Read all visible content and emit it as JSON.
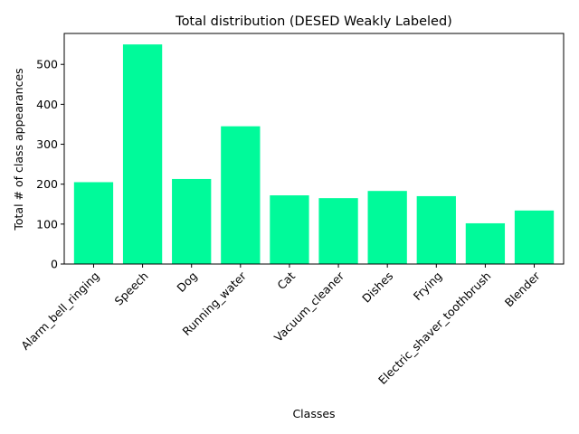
{
  "chart_data": {
    "type": "bar",
    "title": "Total distribution (DESED Weakly Labeled)",
    "xlabel": "Classes",
    "ylabel": "Total # of class appearances",
    "categories": [
      "Alarm_bell_ringing",
      "Speech",
      "Dog",
      "Running_water",
      "Cat",
      "Vacuum_cleaner",
      "Dishes",
      "Frying",
      "Electric_shaver_toothbrush",
      "Blender"
    ],
    "values": [
      205,
      550,
      213,
      345,
      172,
      165,
      183,
      170,
      102,
      134
    ],
    "ylim": [
      0,
      577.5
    ],
    "yticks": [
      0,
      100,
      200,
      300,
      400,
      500
    ],
    "bar_color": "#00fa9a",
    "grid": false,
    "legend": "none"
  }
}
